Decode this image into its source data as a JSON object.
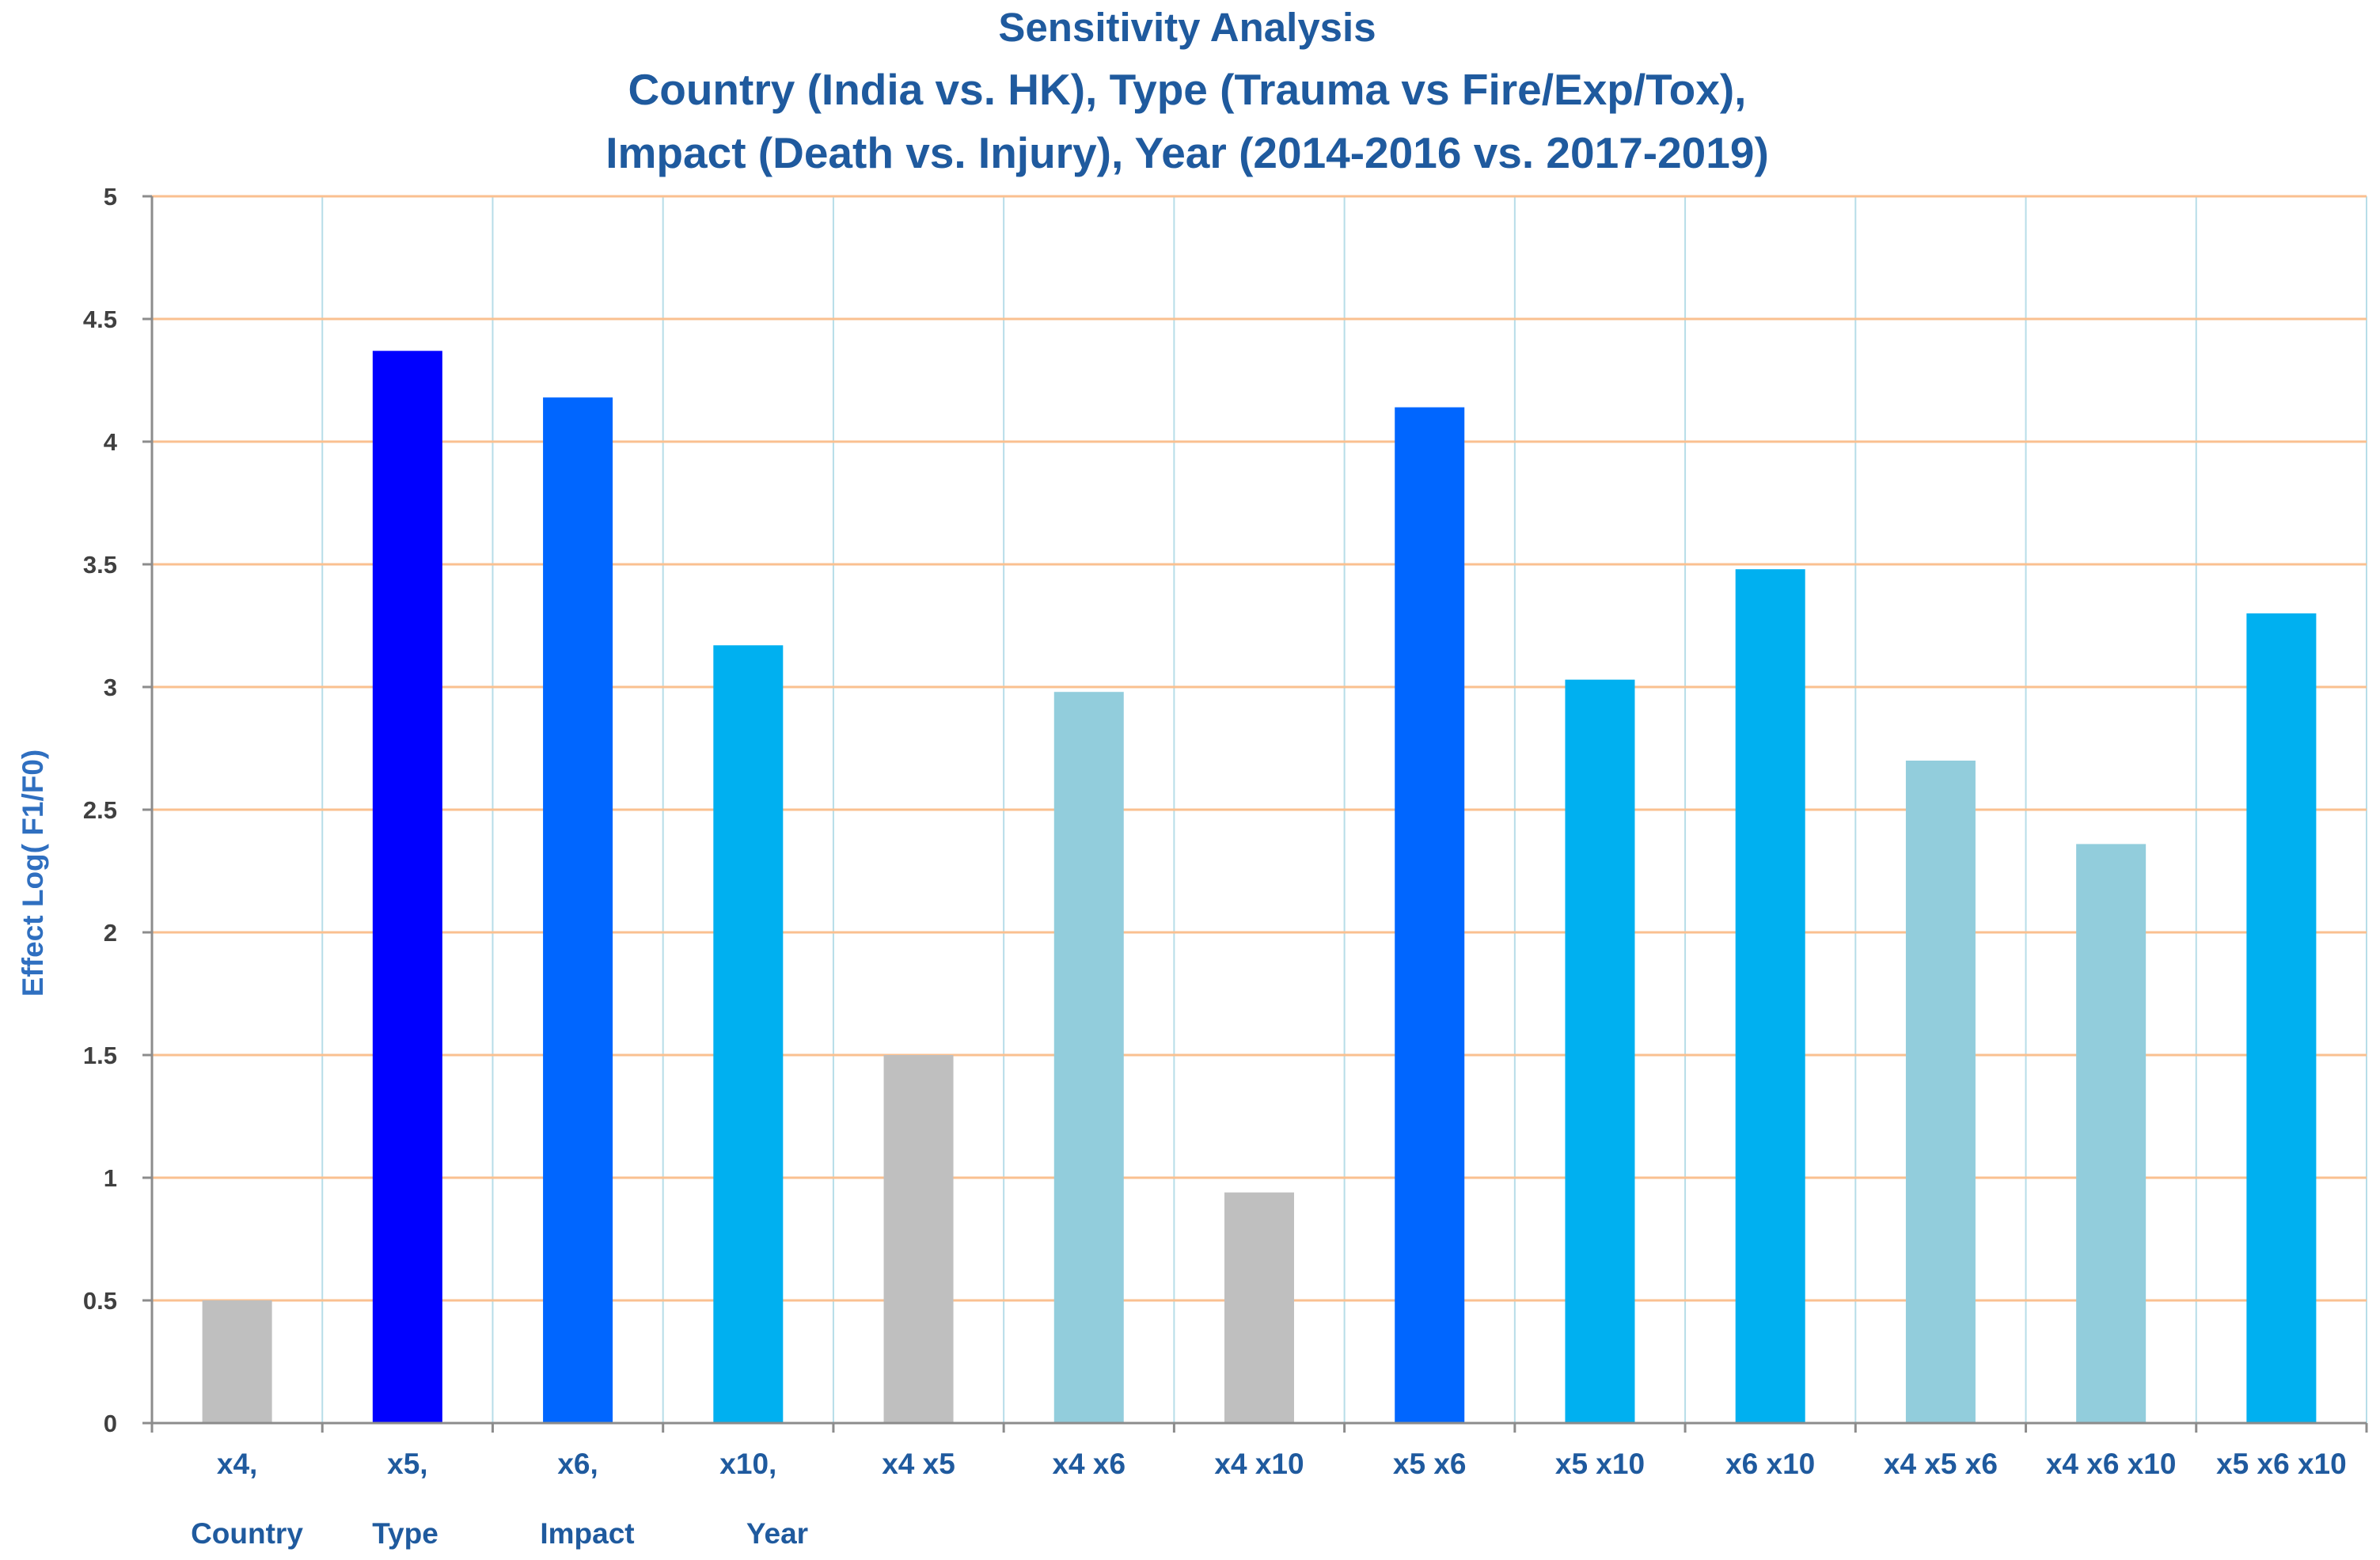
{
  "chart_data": {
    "type": "bar",
    "title_lines": [
      "Sensitivity Analysis",
      "Country (India vs. HK), Type (Trauma vs Fire/Exp/Tox),",
      "Impact (Death vs. Injury), Year (2014-2016 vs. 2017-2019)"
    ],
    "ylabel": "Effect Log( F1/F0)",
    "xlabel": "",
    "ylim": [
      0,
      5
    ],
    "yticks": [
      "0",
      "0.5",
      "1",
      "1.5",
      "2",
      "2.5",
      "3",
      "3.5",
      "4",
      "4.5",
      "5"
    ],
    "ytick_values": [
      0,
      0.5,
      1,
      1.5,
      2,
      2.5,
      3,
      3.5,
      4,
      4.5,
      5
    ],
    "categories": [
      {
        "line1": "x4,",
        "line2": "Country"
      },
      {
        "line1": "x5,",
        "line2": "Type"
      },
      {
        "line1": "x6,",
        "line2": "Impact"
      },
      {
        "line1": "x10,",
        "line2": "Year"
      },
      {
        "line1": "x4 x5",
        "line2": ""
      },
      {
        "line1": "x4 x6",
        "line2": ""
      },
      {
        "line1": "x4 x10",
        "line2": ""
      },
      {
        "line1": "x5 x6",
        "line2": ""
      },
      {
        "line1": "x5 x10",
        "line2": ""
      },
      {
        "line1": "x6 x10",
        "line2": ""
      },
      {
        "line1": "x4 x5 x6",
        "line2": ""
      },
      {
        "line1": "x4 x6 x10",
        "line2": ""
      },
      {
        "line1": "x5 x6 x10",
        "line2": ""
      }
    ],
    "values": [
      0.5,
      4.37,
      4.18,
      3.17,
      1.5,
      2.98,
      0.94,
      4.14,
      3.03,
      3.48,
      2.7,
      2.36,
      3.3
    ],
    "bar_colors": [
      "#bfbfbf",
      "#0000ff",
      "#0066ff",
      "#00b0f0",
      "#bfbfbf",
      "#92cddc",
      "#bfbfbf",
      "#0066ff",
      "#00b0f0",
      "#00b0f0",
      "#92cddc",
      "#92cddc",
      "#00b0f0"
    ],
    "grid": {
      "horizontal": true,
      "vertical": true,
      "horizontal_color": "#fac090",
      "vertical_color": "#b7dde8"
    },
    "legend": "none"
  }
}
